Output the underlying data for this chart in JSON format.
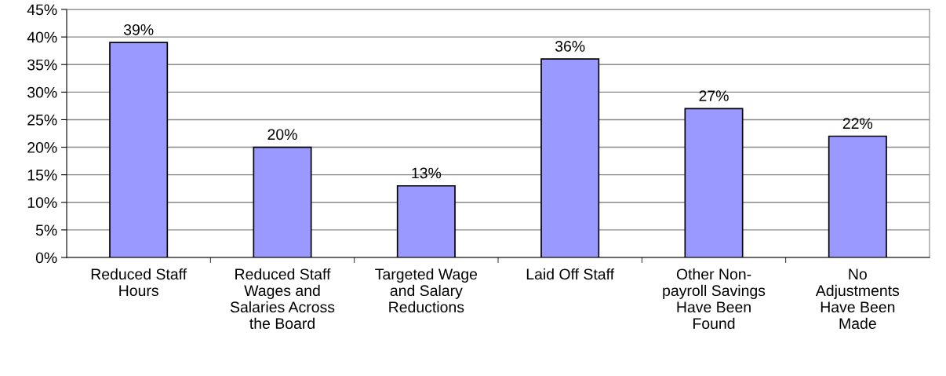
{
  "chart_data": {
    "type": "bar",
    "categories": [
      "Reduced Staff\nHours",
      "Reduced Staff\nWages and\nSalaries Across\nthe Board",
      "Targeted Wage\nand Salary\nReductions",
      "Laid Off Staff",
      "Other Non-\npayroll Savings\nHave Been\nFound",
      "No\nAdjustments\nHave Been\nMade"
    ],
    "values": [
      39,
      20,
      13,
      36,
      27,
      22
    ],
    "value_labels": [
      "39%",
      "20%",
      "13%",
      "36%",
      "27%",
      "22%"
    ],
    "color": "#9999ff",
    "ylim": [
      0,
      45
    ],
    "yticks": [
      {
        "value": 0,
        "label": "0%"
      },
      {
        "value": 5,
        "label": "5%"
      },
      {
        "value": 10,
        "label": "10%"
      },
      {
        "value": 15,
        "label": "15%"
      },
      {
        "value": 20,
        "label": "20%"
      },
      {
        "value": 25,
        "label": "25%"
      },
      {
        "value": 30,
        "label": "30%"
      },
      {
        "value": 35,
        "label": "35%"
      },
      {
        "value": 40,
        "label": "40%"
      },
      {
        "value": 45,
        "label": "45%"
      }
    ],
    "grid": "y"
  }
}
